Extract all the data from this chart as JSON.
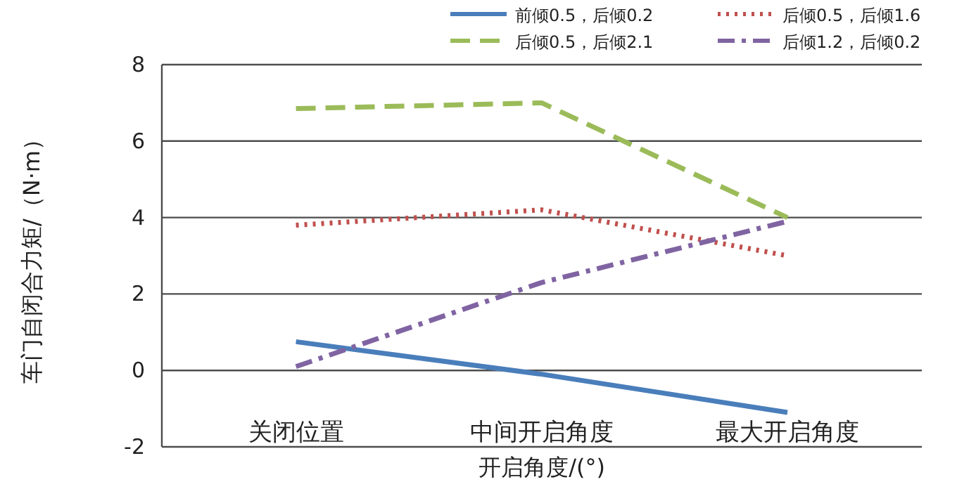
{
  "chart_data": {
    "type": "line",
    "xlabel": "开启角度/(°)",
    "ylabel": "车门自闭合力矩/（N·m）",
    "categories": [
      "关闭位置",
      "中间开启角度",
      "最大开启角度"
    ],
    "series": [
      {
        "name": "前倾0.5，后倾0.2",
        "color": "#4a7ebb",
        "line_style": "solid",
        "values": [
          0.75,
          -0.1,
          -1.1
        ]
      },
      {
        "name": "后倾0.5，后倾1.6",
        "color": "#c0504d",
        "line_style": "dotted",
        "values": [
          3.8,
          4.2,
          3.0
        ]
      },
      {
        "name": "后倾0.5，后倾2.1",
        "color": "#9bbb59",
        "line_style": "dashed",
        "values": [
          6.85,
          7.0,
          4.0
        ]
      },
      {
        "name": "后倾1.2，后倾0.2",
        "color": "#8064a2",
        "line_style": "dashdot",
        "values": [
          0.1,
          2.3,
          3.9
        ]
      }
    ],
    "ylim": [
      -2,
      8
    ],
    "yticks": [
      -2,
      0,
      2,
      4,
      6,
      8
    ],
    "grid": "y",
    "legend": "top right",
    "marker": "none"
  }
}
